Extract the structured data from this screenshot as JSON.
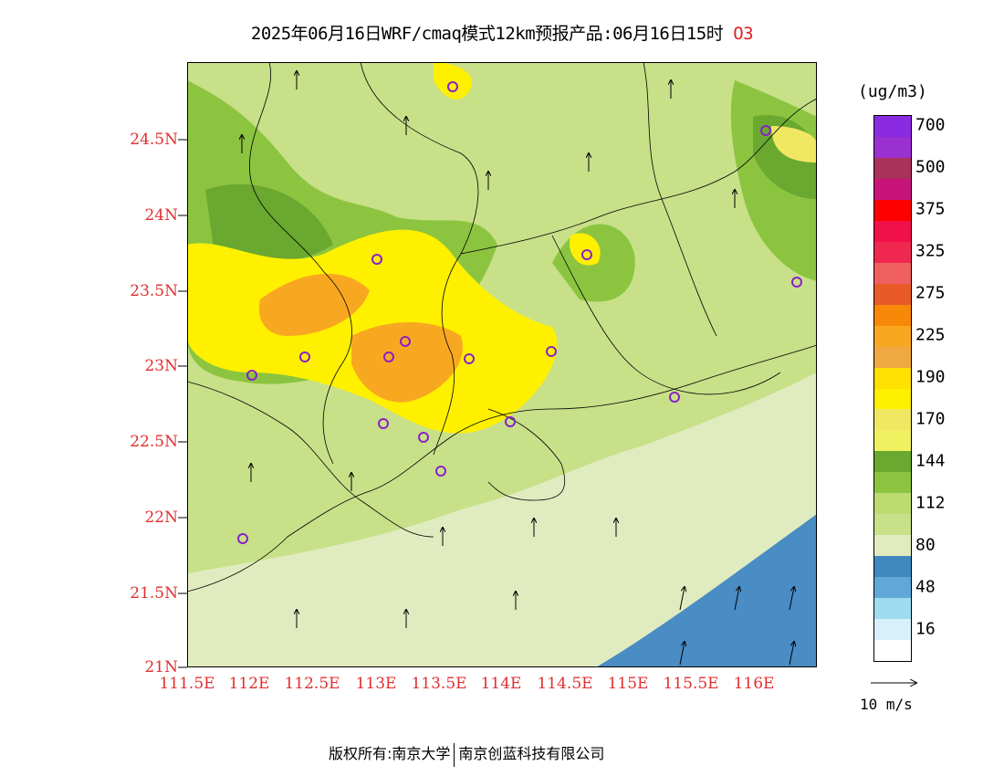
{
  "title": {
    "main": "2025年06月16日WRF/cmaq模式12km预报产品:06月16日15时",
    "species": "O3",
    "species_color": "#e02020"
  },
  "axes": {
    "y_ticks": [
      "24.5N",
      "24N",
      "23.5N",
      "23N",
      "22.5N",
      "22N",
      "21.5N",
      "21N"
    ],
    "x_ticks": [
      "111.5E",
      "112E",
      "112.5E",
      "113E",
      "113.5E",
      "114E",
      "114.5E",
      "115E",
      "115.5E",
      "116E"
    ],
    "tick_color": "#e03030"
  },
  "legend": {
    "unit": "(ug/m3)",
    "levels": [
      {
        "label": "700",
        "color": "#8a2be2"
      },
      {
        "label": "",
        "color": "#9b30d0"
      },
      {
        "label": "500",
        "color": "#a8325a"
      },
      {
        "label": "",
        "color": "#c8147a"
      },
      {
        "label": "375",
        "color": "#ff0000"
      },
      {
        "label": "",
        "color": "#f0104a"
      },
      {
        "label": "325",
        "color": "#f02850"
      },
      {
        "label": "",
        "color": "#f06060"
      },
      {
        "label": "275",
        "color": "#e85a28"
      },
      {
        "label": "",
        "color": "#f88808"
      },
      {
        "label": "225",
        "color": "#f8a820"
      },
      {
        "label": "",
        "color": "#f0a840"
      },
      {
        "label": "190",
        "color": "#ffe000"
      },
      {
        "label": "",
        "color": "#fff000"
      },
      {
        "label": "170",
        "color": "#f0e860"
      },
      {
        "label": "",
        "color": "#f0f060"
      },
      {
        "label": "144",
        "color": "#6aa830"
      },
      {
        "label": "",
        "color": "#8cc440"
      },
      {
        "label": "112",
        "color": "#bcdc70"
      },
      {
        "label": "",
        "color": "#c8e088"
      },
      {
        "label": "80",
        "color": "#e0ecc0"
      },
      {
        "label": "",
        "color": "#4088c0"
      },
      {
        "label": "48",
        "color": "#60a8d8"
      },
      {
        "label": "",
        "color": "#a0dcf0"
      },
      {
        "label": "16",
        "color": "#d8f0fc"
      },
      {
        "label": "",
        "color": "#ffffff"
      }
    ]
  },
  "wind_vector": {
    "label": "10 m/s"
  },
  "footer": {
    "left": "版权所有:南京大学",
    "right": "南京创蓝科技有限公司"
  },
  "sea_color": "#4a8cc4"
}
